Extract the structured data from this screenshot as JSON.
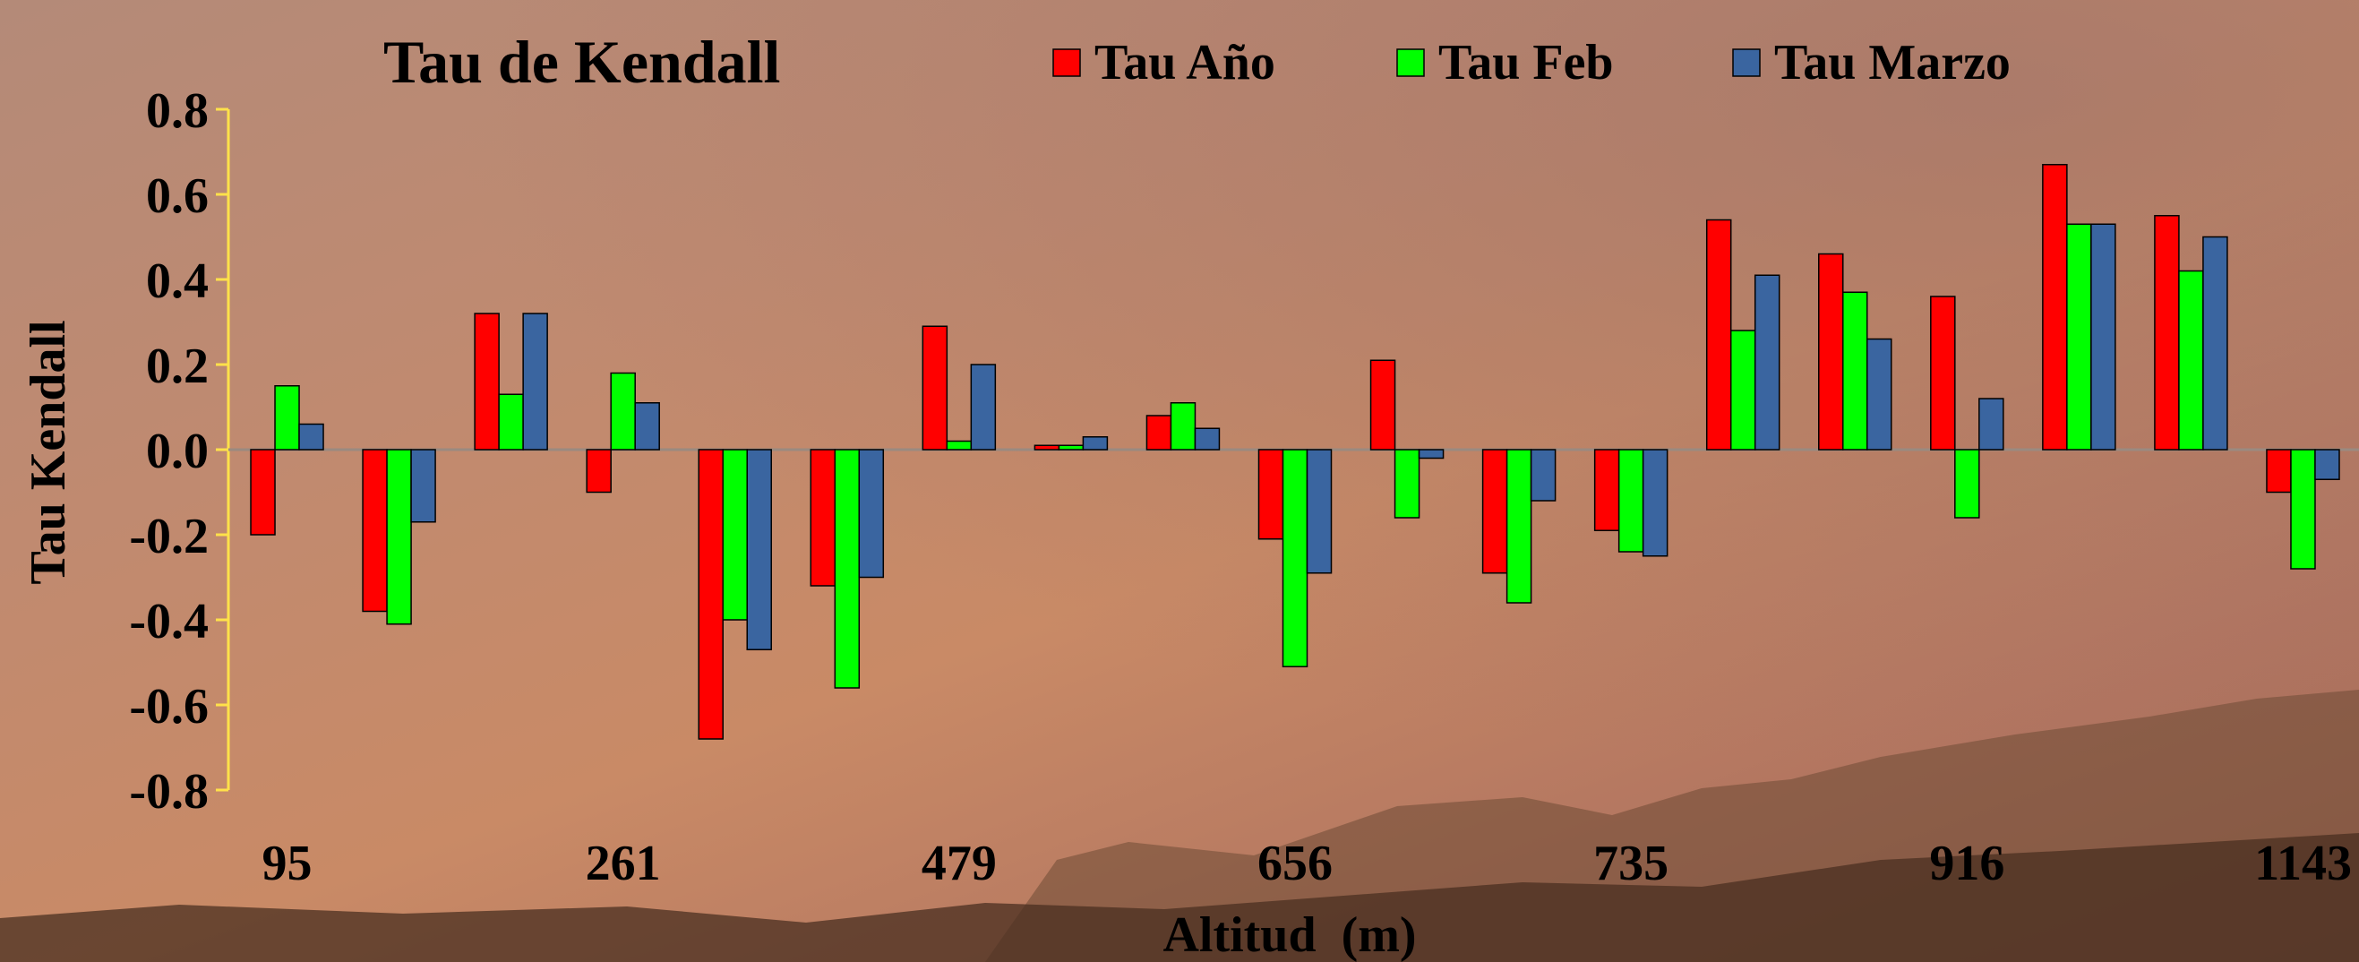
{
  "chart_data": {
    "type": "bar",
    "title": "Tau de Kendall",
    "xlabel": "Altitud  (m)",
    "ylabel": "Tau Kendall",
    "ylim": [
      -0.8,
      0.8
    ],
    "yticks": [
      "0.8",
      "0.6",
      "0.4",
      "0.2",
      "0.0",
      "-0.2",
      "-0.4",
      "-0.6",
      "-0.8"
    ],
    "categories": [
      "95",
      "",
      "",
      "261",
      "",
      "",
      "479",
      "",
      "",
      "656",
      "",
      "",
      "735",
      "",
      "",
      "916",
      "",
      "",
      "1143"
    ],
    "series": [
      {
        "name": "Tau Año",
        "color": "#ff0000",
        "values": [
          -0.2,
          -0.38,
          0.32,
          -0.1,
          -0.68,
          -0.32,
          0.29,
          0.01,
          0.08,
          -0.21,
          0.21,
          -0.29,
          -0.19,
          0.54,
          0.46,
          0.36,
          0.67,
          0.55,
          -0.1
        ]
      },
      {
        "name": "Tau Feb",
        "color": "#00ff00",
        "values": [
          0.15,
          -0.41,
          0.13,
          0.18,
          -0.4,
          -0.56,
          0.02,
          0.01,
          0.11,
          -0.51,
          -0.16,
          -0.36,
          -0.24,
          0.28,
          0.37,
          -0.16,
          0.53,
          0.42,
          -0.28
        ]
      },
      {
        "name": "Tau Marzo",
        "color": "#3a65a0",
        "values": [
          0.06,
          -0.17,
          0.32,
          0.11,
          -0.47,
          -0.3,
          0.2,
          0.03,
          0.05,
          -0.29,
          -0.02,
          -0.12,
          -0.25,
          0.41,
          0.26,
          0.12,
          0.53,
          0.5,
          -0.07
        ]
      }
    ],
    "legend_position": "top",
    "grid": false
  }
}
